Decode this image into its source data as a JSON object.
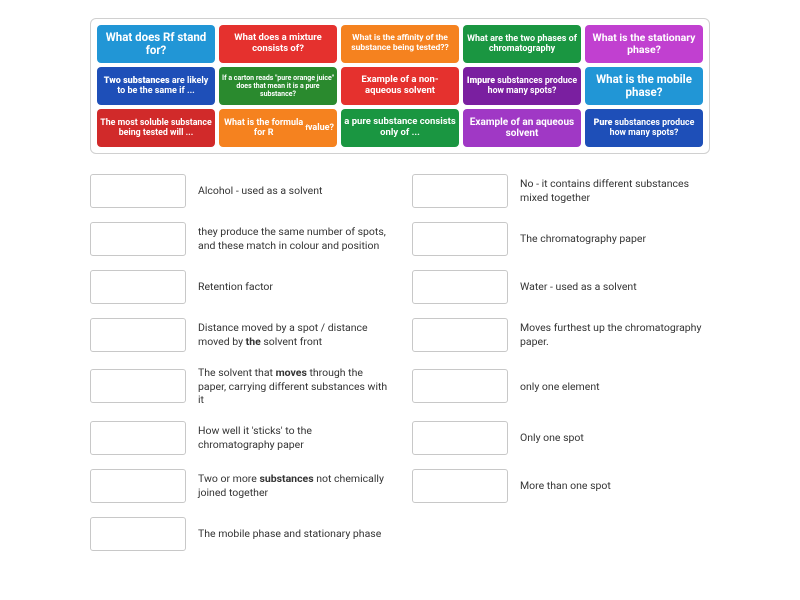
{
  "cards": [
    {
      "label": "What does Rf stand for?",
      "bg": "#2196d6",
      "fontSize": "11.5px"
    },
    {
      "label": "What does a mixture consists of?",
      "bg": "#e5312e",
      "fontSize": "9.5px"
    },
    {
      "label": "What is the affinity of the substance being tested??",
      "bg": "#f5821f",
      "fontSize": "8.5px"
    },
    {
      "label": "What are the two phases of chromatography",
      "bg": "#1a9641",
      "fontSize": "9px"
    },
    {
      "label": "What is the stationary phase?",
      "bg": "#c140d0",
      "fontSize": "10.5px"
    },
    {
      "label": "Two substances are likely to be the same if ...",
      "bg": "#1e4fb8",
      "fontSize": "9px"
    },
    {
      "label": "If a carton reads \"pure orange juice\" does that mean it is a pure substance?",
      "bg": "#2a8a2e",
      "fontSize": "7px"
    },
    {
      "label": "Example of a non-aqueous solvent",
      "bg": "#e5312e",
      "fontSize": "9.5px"
    },
    {
      "label": "Impure substances produce how many spots?",
      "bg": "#7a1fa0",
      "fontSize": "8.8px"
    },
    {
      "label": "What is the mobile phase?",
      "bg": "#2196d6",
      "fontSize": "11.5px"
    },
    {
      "label": "The most soluble substance being tested will ...",
      "bg": "#d12a2a",
      "fontSize": "8.8px"
    },
    {
      "label": "What is the formula for R☕ value?",
      "bg": "#f5821f",
      "fontSize": "9px"
    },
    {
      "label": "a pure substance consists only of ...",
      "bg": "#1a9641",
      "fontSize": "9.5px"
    },
    {
      "label": "Example of an aqueous solvent",
      "bg": "#a038c5",
      "fontSize": "10px"
    },
    {
      "label": "Pure substances produce how many spots?",
      "bg": "#1e4fb8",
      "fontSize": "8.8px"
    }
  ],
  "card_formula_html": "What is the formula for R<sub>f</sub> value?",
  "answers_left": [
    {
      "text": "Alcohol - used as a solvent"
    },
    {
      "text": "they produce the same number of spots, and these match in colour and position"
    },
    {
      "text": "Retention factor"
    },
    {
      "text": "Distance moved by a spot / distance moved by the solvent front"
    },
    {
      "text": "The solvent that moves through the paper, carrying different substances with it"
    },
    {
      "text": "How well it 'sticks' to the chromatography paper"
    },
    {
      "text": "Two or more substances not chemically joined together"
    },
    {
      "text": "The mobile phase and stationary phase"
    }
  ],
  "answers_right": [
    {
      "text": "No - it contains different substances mixed together"
    },
    {
      "text": "The chromatography paper"
    },
    {
      "text": "Water - used as a solvent"
    },
    {
      "text": "Moves furthest up the chromatography paper."
    },
    {
      "text": "only one element"
    },
    {
      "text": "Only one spot"
    },
    {
      "text": "More than one spot"
    }
  ],
  "colors": {
    "border": "#d0d0d0",
    "dropBorder": "#c8c8c8",
    "text": "#333333"
  }
}
